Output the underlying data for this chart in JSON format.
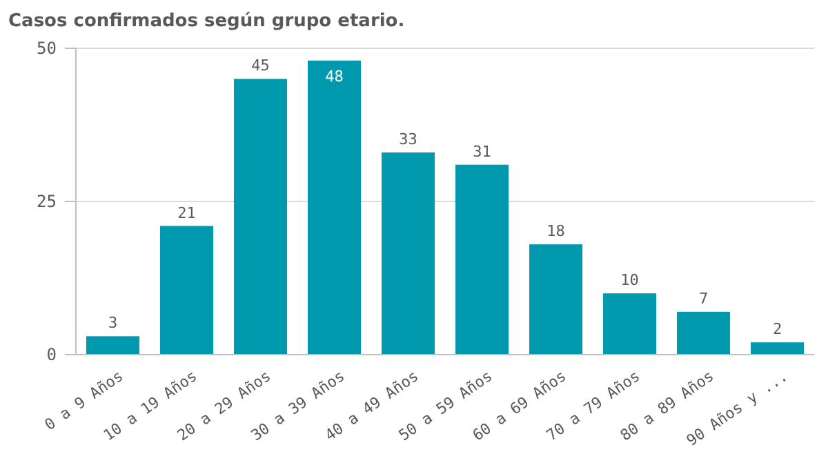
{
  "chart_data": {
    "type": "bar",
    "title": "Casos confirmados según grupo etario.",
    "categories": [
      "0 a 9 Años",
      "10 a 19 Años",
      "20 a 29 Años",
      "30 a 39 Años",
      "40 a 49 Años",
      "50 a 59 Años",
      "60 a 69 Años",
      "70 a 79 Años",
      "80 a 89 Años",
      "90 Años y ..."
    ],
    "values": [
      3,
      21,
      45,
      48,
      33,
      31,
      18,
      10,
      7,
      2
    ],
    "color": "#0099ad",
    "ylim": [
      0,
      50
    ],
    "yticks": [
      0,
      25,
      50
    ],
    "grid": "y",
    "data_labels": true
  }
}
